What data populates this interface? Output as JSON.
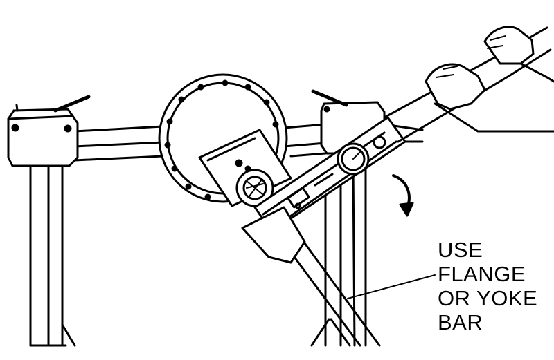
{
  "callout": {
    "lines": [
      "USE",
      "FLANGE",
      "OR YOKE",
      "BAR"
    ]
  },
  "colors": {
    "ink": "#000000",
    "paper": "#ffffff"
  }
}
